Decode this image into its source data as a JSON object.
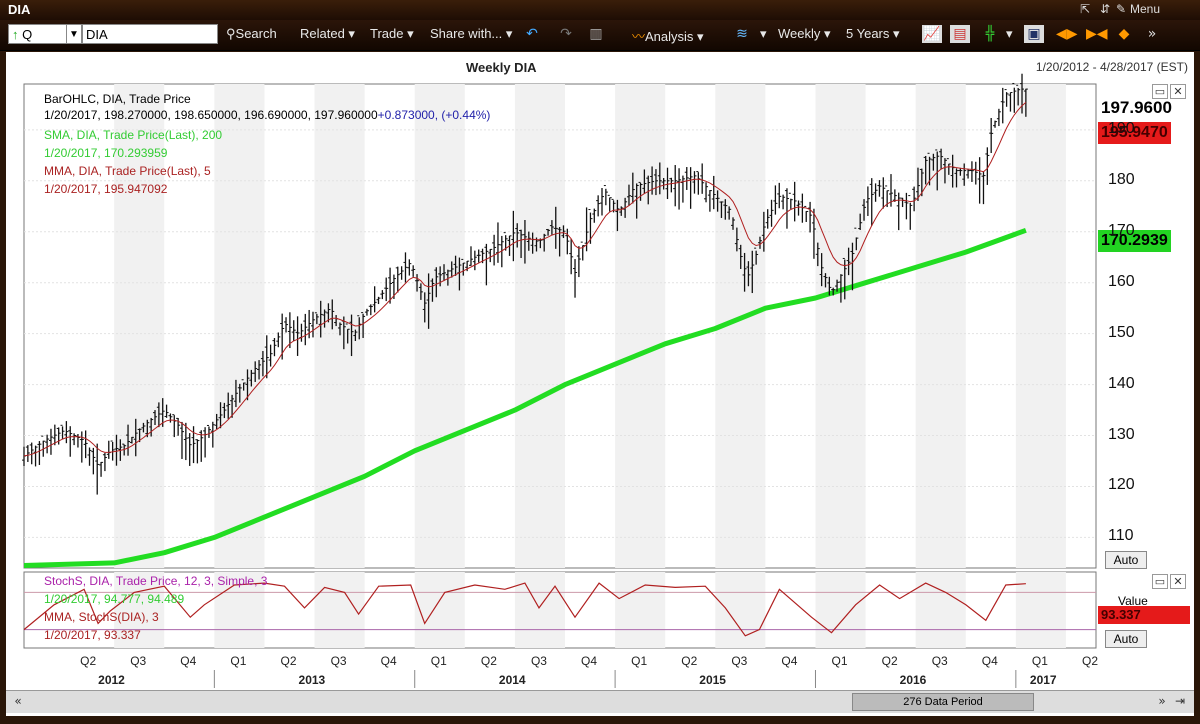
{
  "window": {
    "title": "DIA",
    "menu": "Menu"
  },
  "toolbar": {
    "period_code": "Q",
    "symbol": "DIA",
    "search": "Search",
    "related": "Related",
    "trade": "Trade",
    "share": "Share with...",
    "analysis": "Analysis",
    "interval": "Weekly",
    "range": "5 Years"
  },
  "header": {
    "title": "Weekly DIA",
    "date_range": "1/20/2012 - 4/28/2017 (EST)"
  },
  "legend": {
    "line1": "BarOHLC, DIA, Trade Price",
    "line2": "1/20/2017, 198.270000, 198.650000, 196.690000, 197.960000",
    "line2_change": "+0.873000, (+0.44%)",
    "line3": "SMA, DIA, Trade Price(Last), 200",
    "line4": "1/20/2017, 170.293959",
    "line5": "MMA, DIA, Trade Price(Last), 5",
    "line6": "1/20/2017, 195.947092"
  },
  "lower_legend": {
    "line1": "StochS, DIA, Trade Price, 12, 3, Simple, 3",
    "line2": "1/20/2017, 94.777, 94.489",
    "line3": "MMA, StochS(DIA), 3",
    "line4": "1/20/2017, 93.337"
  },
  "price_badges": {
    "last": "197.9600",
    "mma": "195.9470",
    "sma": "170.2939"
  },
  "lower_panel": {
    "value_label": "Value",
    "value_badge": "93.337"
  },
  "auto_label": "Auto",
  "scrollbar": {
    "label": "276 Data Period"
  },
  "chart_data": {
    "type": "line",
    "title": "Weekly DIA",
    "y_ticks": [
      110,
      120,
      130,
      140,
      150,
      160,
      170,
      180,
      190
    ],
    "ylim": [
      104,
      199
    ],
    "quarters": [
      "Q2",
      "Q3",
      "Q4",
      "Q1",
      "Q2",
      "Q3",
      "Q4",
      "Q1",
      "Q2",
      "Q3",
      "Q4",
      "Q1",
      "Q2",
      "Q3",
      "Q4",
      "Q1",
      "Q2",
      "Q3",
      "Q4",
      "Q1",
      "Q2"
    ],
    "years": [
      "2012",
      "2013",
      "2014",
      "2015",
      "2016",
      "2017"
    ],
    "price_close": [
      [
        2012.05,
        126
      ],
      [
        2012.15,
        129
      ],
      [
        2012.25,
        131
      ],
      [
        2012.35,
        129
      ],
      [
        2012.42,
        124
      ],
      [
        2012.48,
        127
      ],
      [
        2012.55,
        128
      ],
      [
        2012.62,
        131
      ],
      [
        2012.68,
        133
      ],
      [
        2012.75,
        135
      ],
      [
        2012.82,
        132
      ],
      [
        2012.88,
        128
      ],
      [
        2012.95,
        130
      ],
      [
        2013.05,
        135
      ],
      [
        2013.12,
        139
      ],
      [
        2013.2,
        143
      ],
      [
        2013.28,
        146
      ],
      [
        2013.35,
        152
      ],
      [
        2013.42,
        150
      ],
      [
        2013.5,
        153
      ],
      [
        2013.58,
        155
      ],
      [
        2013.62,
        152
      ],
      [
        2013.7,
        150
      ],
      [
        2013.75,
        154
      ],
      [
        2013.82,
        157
      ],
      [
        2013.9,
        161
      ],
      [
        2013.98,
        164
      ],
      [
        2014.05,
        156
      ],
      [
        2014.1,
        161
      ],
      [
        2014.2,
        163
      ],
      [
        2014.3,
        165
      ],
      [
        2014.4,
        167
      ],
      [
        2014.5,
        170
      ],
      [
        2014.55,
        169
      ],
      [
        2014.62,
        168
      ],
      [
        2014.68,
        171
      ],
      [
        2014.75,
        170
      ],
      [
        2014.8,
        162
      ],
      [
        2014.88,
        173
      ],
      [
        2014.95,
        178
      ],
      [
        2015.02,
        174
      ],
      [
        2015.1,
        179
      ],
      [
        2015.2,
        180
      ],
      [
        2015.3,
        180
      ],
      [
        2015.4,
        181
      ],
      [
        2015.45,
        179
      ],
      [
        2015.5,
        177
      ],
      [
        2015.58,
        174
      ],
      [
        2015.62,
        166
      ],
      [
        2015.66,
        161
      ],
      [
        2015.7,
        165
      ],
      [
        2015.75,
        172
      ],
      [
        2015.82,
        177
      ],
      [
        2015.9,
        176
      ],
      [
        2015.98,
        173
      ],
      [
        2016.03,
        163
      ],
      [
        2016.08,
        158
      ],
      [
        2016.12,
        161
      ],
      [
        2016.18,
        165
      ],
      [
        2016.25,
        176
      ],
      [
        2016.32,
        179
      ],
      [
        2016.4,
        177
      ],
      [
        2016.48,
        175
      ],
      [
        2016.55,
        184
      ],
      [
        2016.62,
        185
      ],
      [
        2016.7,
        182
      ],
      [
        2016.78,
        182
      ],
      [
        2016.84,
        181
      ],
      [
        2016.88,
        190
      ],
      [
        2016.95,
        197
      ],
      [
        2017.02,
        198
      ],
      [
        2017.05,
        198
      ]
    ],
    "sma_200": [
      [
        2012.05,
        104.5
      ],
      [
        2012.5,
        105
      ],
      [
        2012.75,
        107
      ],
      [
        2013.0,
        110
      ],
      [
        2013.25,
        114
      ],
      [
        2013.5,
        118
      ],
      [
        2013.75,
        122
      ],
      [
        2014.0,
        127
      ],
      [
        2014.25,
        131
      ],
      [
        2014.5,
        135
      ],
      [
        2014.75,
        140
      ],
      [
        2015.0,
        144
      ],
      [
        2015.25,
        148
      ],
      [
        2015.5,
        151
      ],
      [
        2015.75,
        155
      ],
      [
        2016.0,
        157
      ],
      [
        2016.25,
        160
      ],
      [
        2016.5,
        163
      ],
      [
        2016.75,
        166
      ],
      [
        2017.05,
        170.29
      ]
    ],
    "stoch": [
      [
        2012.05,
        20
      ],
      [
        2012.2,
        60
      ],
      [
        2012.35,
        85
      ],
      [
        2012.42,
        30
      ],
      [
        2012.48,
        50
      ],
      [
        2012.6,
        80
      ],
      [
        2012.75,
        90
      ],
      [
        2012.88,
        40
      ],
      [
        2012.95,
        60
      ],
      [
        2013.1,
        92
      ],
      [
        2013.25,
        95
      ],
      [
        2013.35,
        90
      ],
      [
        2013.45,
        55
      ],
      [
        2013.55,
        88
      ],
      [
        2013.65,
        80
      ],
      [
        2013.72,
        45
      ],
      [
        2013.82,
        90
      ],
      [
        2013.98,
        92
      ],
      [
        2014.05,
        30
      ],
      [
        2014.15,
        80
      ],
      [
        2014.3,
        92
      ],
      [
        2014.45,
        85
      ],
      [
        2014.55,
        95
      ],
      [
        2014.62,
        55
      ],
      [
        2014.7,
        90
      ],
      [
        2014.8,
        40
      ],
      [
        2014.92,
        95
      ],
      [
        2015.02,
        70
      ],
      [
        2015.15,
        92
      ],
      [
        2015.3,
        88
      ],
      [
        2015.45,
        90
      ],
      [
        2015.55,
        55
      ],
      [
        2015.65,
        10
      ],
      [
        2015.72,
        20
      ],
      [
        2015.82,
        85
      ],
      [
        2015.98,
        40
      ],
      [
        2016.08,
        15
      ],
      [
        2016.2,
        60
      ],
      [
        2016.32,
        92
      ],
      [
        2016.42,
        70
      ],
      [
        2016.55,
        95
      ],
      [
        2016.65,
        80
      ],
      [
        2016.75,
        60
      ],
      [
        2016.85,
        35
      ],
      [
        2016.95,
        92
      ],
      [
        2017.05,
        94
      ]
    ]
  }
}
